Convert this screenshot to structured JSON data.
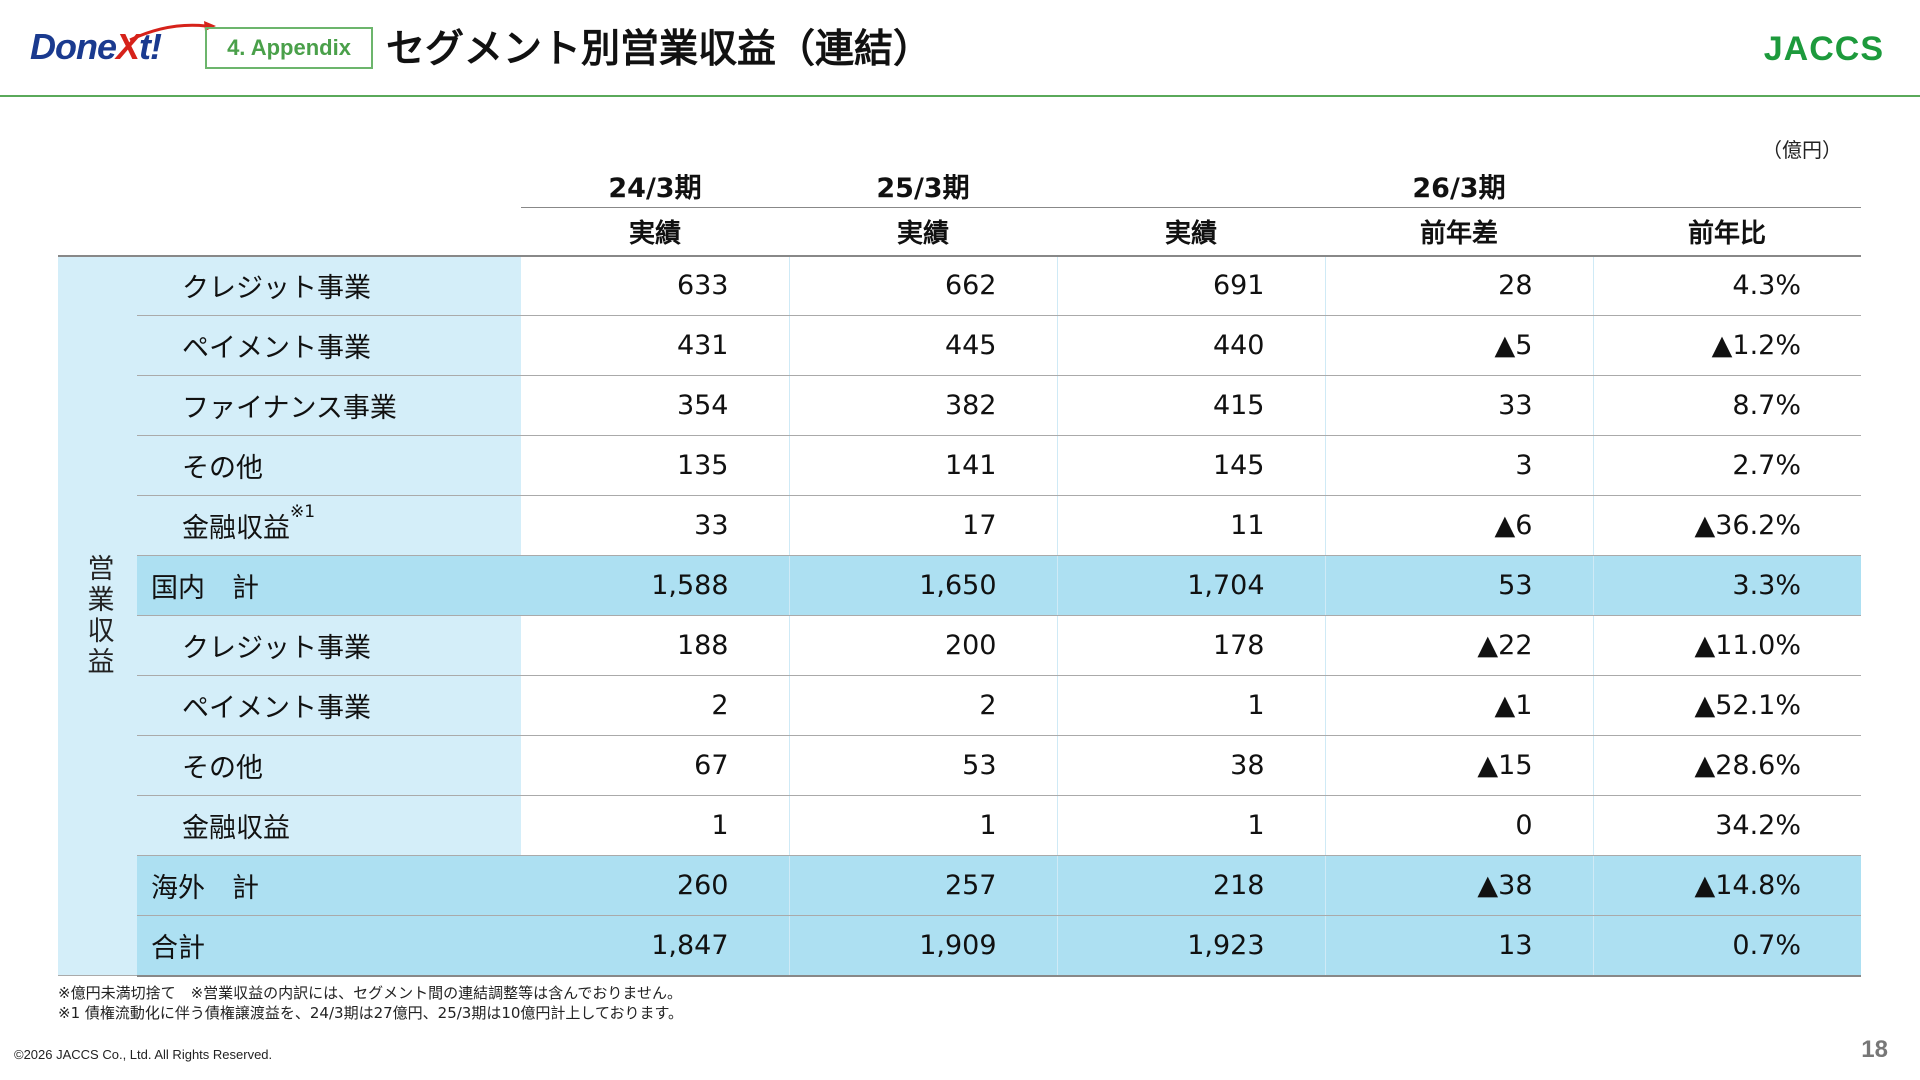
{
  "header": {
    "logo_left": {
      "text_do": "Do",
      "text_ne": "ne",
      "text_x": "X",
      "text_t": "t!"
    },
    "section_tag": "4. Appendix",
    "title": "セグメント別営業収益（連結）",
    "logo_right": "JACCS"
  },
  "unit_label": "（億円）",
  "table": {
    "periods": [
      "24/3期",
      "25/3期",
      "26/3期"
    ],
    "subheaders": [
      "実績",
      "実績",
      "実績",
      "前年差",
      "前年比"
    ],
    "side_label": "営業収益",
    "rows": [
      {
        "label": "クレジット事業",
        "sup": "",
        "values": [
          "633",
          "662",
          "691",
          "28",
          "4.3%"
        ],
        "type": "item"
      },
      {
        "label": "ペイメント事業",
        "sup": "",
        "values": [
          "431",
          "445",
          "440",
          "▲5",
          "▲1.2%"
        ],
        "type": "item"
      },
      {
        "label": "ファイナンス事業",
        "sup": "",
        "values": [
          "354",
          "382",
          "415",
          "33",
          "8.7%"
        ],
        "type": "item"
      },
      {
        "label": "その他",
        "sup": "",
        "values": [
          "135",
          "141",
          "145",
          "3",
          "2.7%"
        ],
        "type": "item"
      },
      {
        "label": "金融収益",
        "sup": "※1",
        "values": [
          "33",
          "17",
          "11",
          "▲6",
          "▲36.2%"
        ],
        "type": "item"
      },
      {
        "label": "国内　計",
        "sup": "",
        "values": [
          "1,588",
          "1,650",
          "1,704",
          "53",
          "3.3%"
        ],
        "type": "subtotal"
      },
      {
        "label": "クレジット事業",
        "sup": "",
        "values": [
          "188",
          "200",
          "178",
          "▲22",
          "▲11.0%"
        ],
        "type": "item"
      },
      {
        "label": "ペイメント事業",
        "sup": "",
        "values": [
          "2",
          "2",
          "1",
          "▲1",
          "▲52.1%"
        ],
        "type": "item"
      },
      {
        "label": "その他",
        "sup": "",
        "values": [
          "67",
          "53",
          "38",
          "▲15",
          "▲28.6%"
        ],
        "type": "item"
      },
      {
        "label": "金融収益",
        "sup": "",
        "values": [
          "1",
          "1",
          "1",
          "0",
          "34.2%"
        ],
        "type": "item"
      },
      {
        "label": "海外　計",
        "sup": "",
        "values": [
          "260",
          "257",
          "218",
          "▲38",
          "▲14.8%"
        ],
        "type": "subtotal"
      },
      {
        "label": "合計",
        "sup": "",
        "values": [
          "1,847",
          "1,909",
          "1,923",
          "13",
          "0.7%"
        ],
        "type": "total"
      }
    ]
  },
  "footnotes": [
    "※億円未満切捨て　※営業収益の内訳には、セグメント間の連結調整等は含んでおりません。",
    "※1 債権流動化に伴う債権譲渡益を、24/3期は27億円、25/3期は10億円計上しております。"
  ],
  "copyright": "©2026 JACCS Co., Ltd. All Rights Reserved.",
  "page_number": "18",
  "colors": {
    "accent_green": "#5aa95a",
    "brand_blue": "#1a3a8f",
    "brand_red": "#d6221a",
    "row_bg": "#d4eef9",
    "subtotal_bg": "#ade0f2"
  }
}
